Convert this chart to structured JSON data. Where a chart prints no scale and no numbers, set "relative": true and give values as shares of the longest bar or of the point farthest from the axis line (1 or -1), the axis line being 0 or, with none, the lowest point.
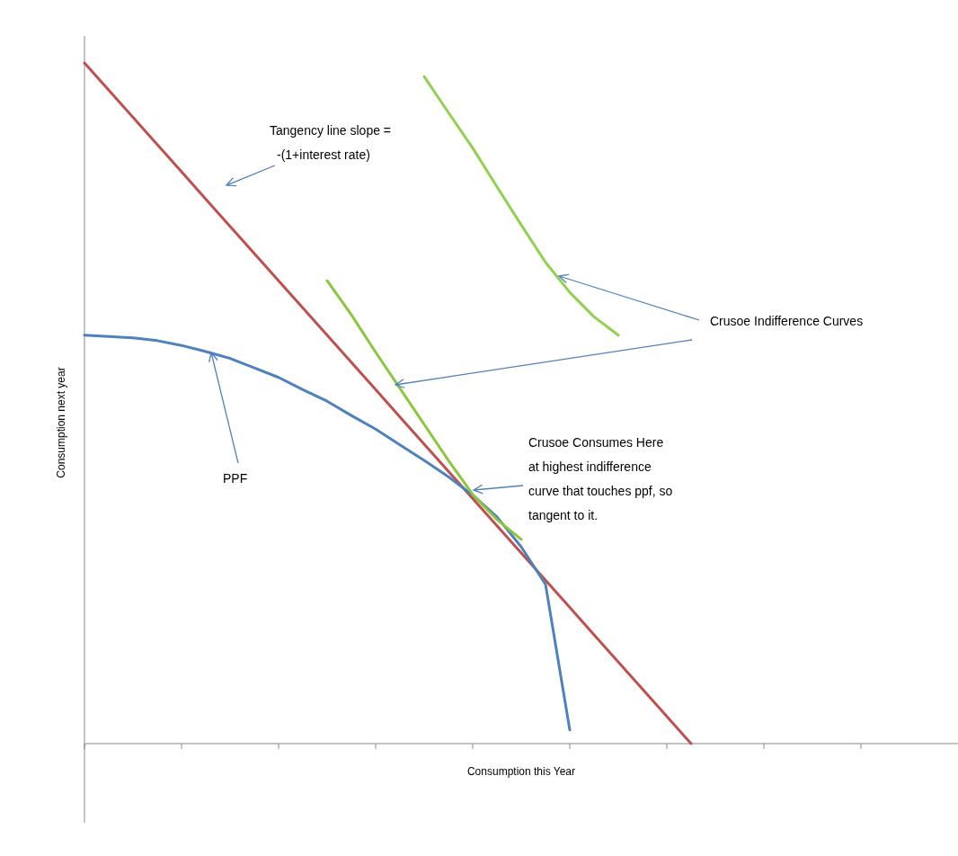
{
  "chart_data": {
    "type": "line",
    "relative": true,
    "xlabel": "Consumption  this  Year",
    "ylabel": "Consumption  next year",
    "categories": [
      null,
      null,
      null,
      null,
      null,
      null,
      null,
      null,
      null,
      null,
      null,
      null,
      null,
      null,
      null,
      null,
      null,
      null,
      null,
      null,
      null,
      null,
      null,
      null,
      null,
      null,
      null,
      null,
      null,
      null,
      null,
      null,
      null,
      null,
      null,
      null
    ],
    "series": [
      {
        "color": "#c0504d",
        "values": [
          1.0,
          0.96,
          0.92,
          0.88,
          0.84,
          0.8,
          0.76,
          0.72,
          0.68,
          0.64,
          0.6,
          0.56,
          0.52,
          0.48,
          0.44,
          0.4,
          0.36,
          0.32,
          0.28,
          0.24,
          0.2,
          0.16,
          0.12,
          0.08,
          0.04,
          0.0,
          null,
          null,
          null,
          null,
          null,
          null,
          null,
          null,
          null,
          null
        ]
      },
      {
        "color": "#4f81bd",
        "values": [
          0.6,
          0.598,
          0.596,
          0.592,
          0.585,
          0.576,
          0.566,
          0.552,
          0.538,
          0.52,
          0.503,
          0.482,
          0.462,
          0.439,
          0.416,
          0.392,
          0.365,
          0.333,
          0.289,
          0.234,
          0.02,
          null,
          null,
          null,
          null,
          null,
          null,
          null,
          null,
          null,
          null,
          null,
          null,
          null,
          null,
          null
        ]
      },
      {
        "color": "#8cc63f",
        "values": [
          null,
          null,
          null,
          null,
          null,
          null,
          null,
          null,
          null,
          null,
          0.68,
          0.63,
          0.575,
          0.522,
          0.469,
          0.416,
          0.366,
          0.329,
          0.3,
          null,
          null,
          null,
          null,
          null,
          null,
          null,
          null,
          null,
          null,
          null,
          null,
          null,
          null,
          null,
          null,
          null
        ]
      },
      {
        "color": "#92d050",
        "values": [
          null,
          null,
          null,
          null,
          null,
          null,
          null,
          null,
          null,
          null,
          null,
          null,
          null,
          null,
          0.98,
          0.927,
          0.875,
          0.818,
          0.762,
          0.707,
          0.663,
          0.627,
          0.6,
          null,
          null,
          null,
          null,
          null,
          null,
          null,
          null,
          null,
          null,
          null,
          null,
          null
        ]
      }
    ],
    "annotations": [
      "Tangency line slope =\n-(1+interest rate)",
      "Crusoe Indifference Curves",
      "PPF",
      "Crusoe Consumes Here\nat highest indifference\ncurve that touches ppf, so\ntangent to it."
    ]
  }
}
